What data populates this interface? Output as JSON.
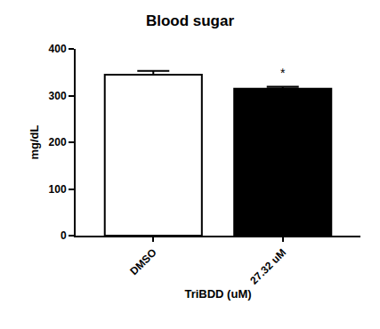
{
  "chart_data": {
    "type": "bar",
    "title": "Blood sugar",
    "x_label": "TriBDD (uM)",
    "y_label": "mg/dL",
    "categories": [
      "DMSO",
      "27.32 uM"
    ],
    "values": [
      345,
      315
    ],
    "errors": [
      8,
      4
    ],
    "colors": [
      "#ffffff",
      "#000000"
    ],
    "ylim": [
      0,
      400
    ],
    "yticks": [
      0,
      100,
      200,
      300,
      400
    ],
    "grid": false,
    "annotations": [
      {
        "category": "27.32 uM",
        "text": "*"
      }
    ]
  }
}
